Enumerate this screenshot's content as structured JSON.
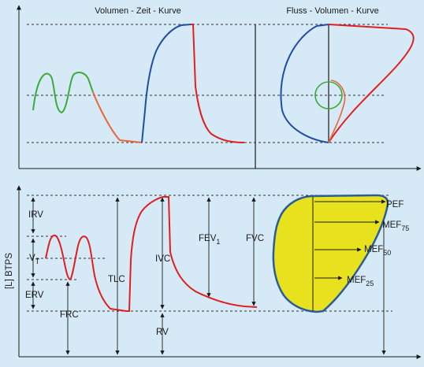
{
  "colors": {
    "background": "#d5e9f6",
    "axis": "#1a1a1a",
    "dashed": "#333333",
    "curve_red": "#e02020",
    "curve_green": "#3bab3b",
    "curve_orange": "#e8663a",
    "curve_blue": "#1f4ea8",
    "fill_yellow": "#e8e21e",
    "outline_blue": "#2a5c9a"
  },
  "top_chart": {
    "volume_time_title": "Volumen - Zeit - Kurve",
    "flow_volume_title": "Fluss - Volumen - Kurve"
  },
  "bottom_chart": {
    "y_axis_label": "[L] BTPS",
    "labels": {
      "irv": "IRV",
      "vt_main": "V",
      "vt_sub": "T",
      "erv": "ERV",
      "frc": "FRC",
      "tlc": "TLC",
      "ivc": "IVC",
      "rv": "RV",
      "fev_main": "FEV",
      "fev_sub": "1",
      "fvc": "FVC"
    },
    "flow_labels": {
      "pef": "PEF",
      "mef75_main": "MEF",
      "mef75_sub": "75",
      "mef50_main": "MEF",
      "mef50_sub": "50",
      "mef25_main": "MEF",
      "mef25_sub": "25"
    }
  }
}
